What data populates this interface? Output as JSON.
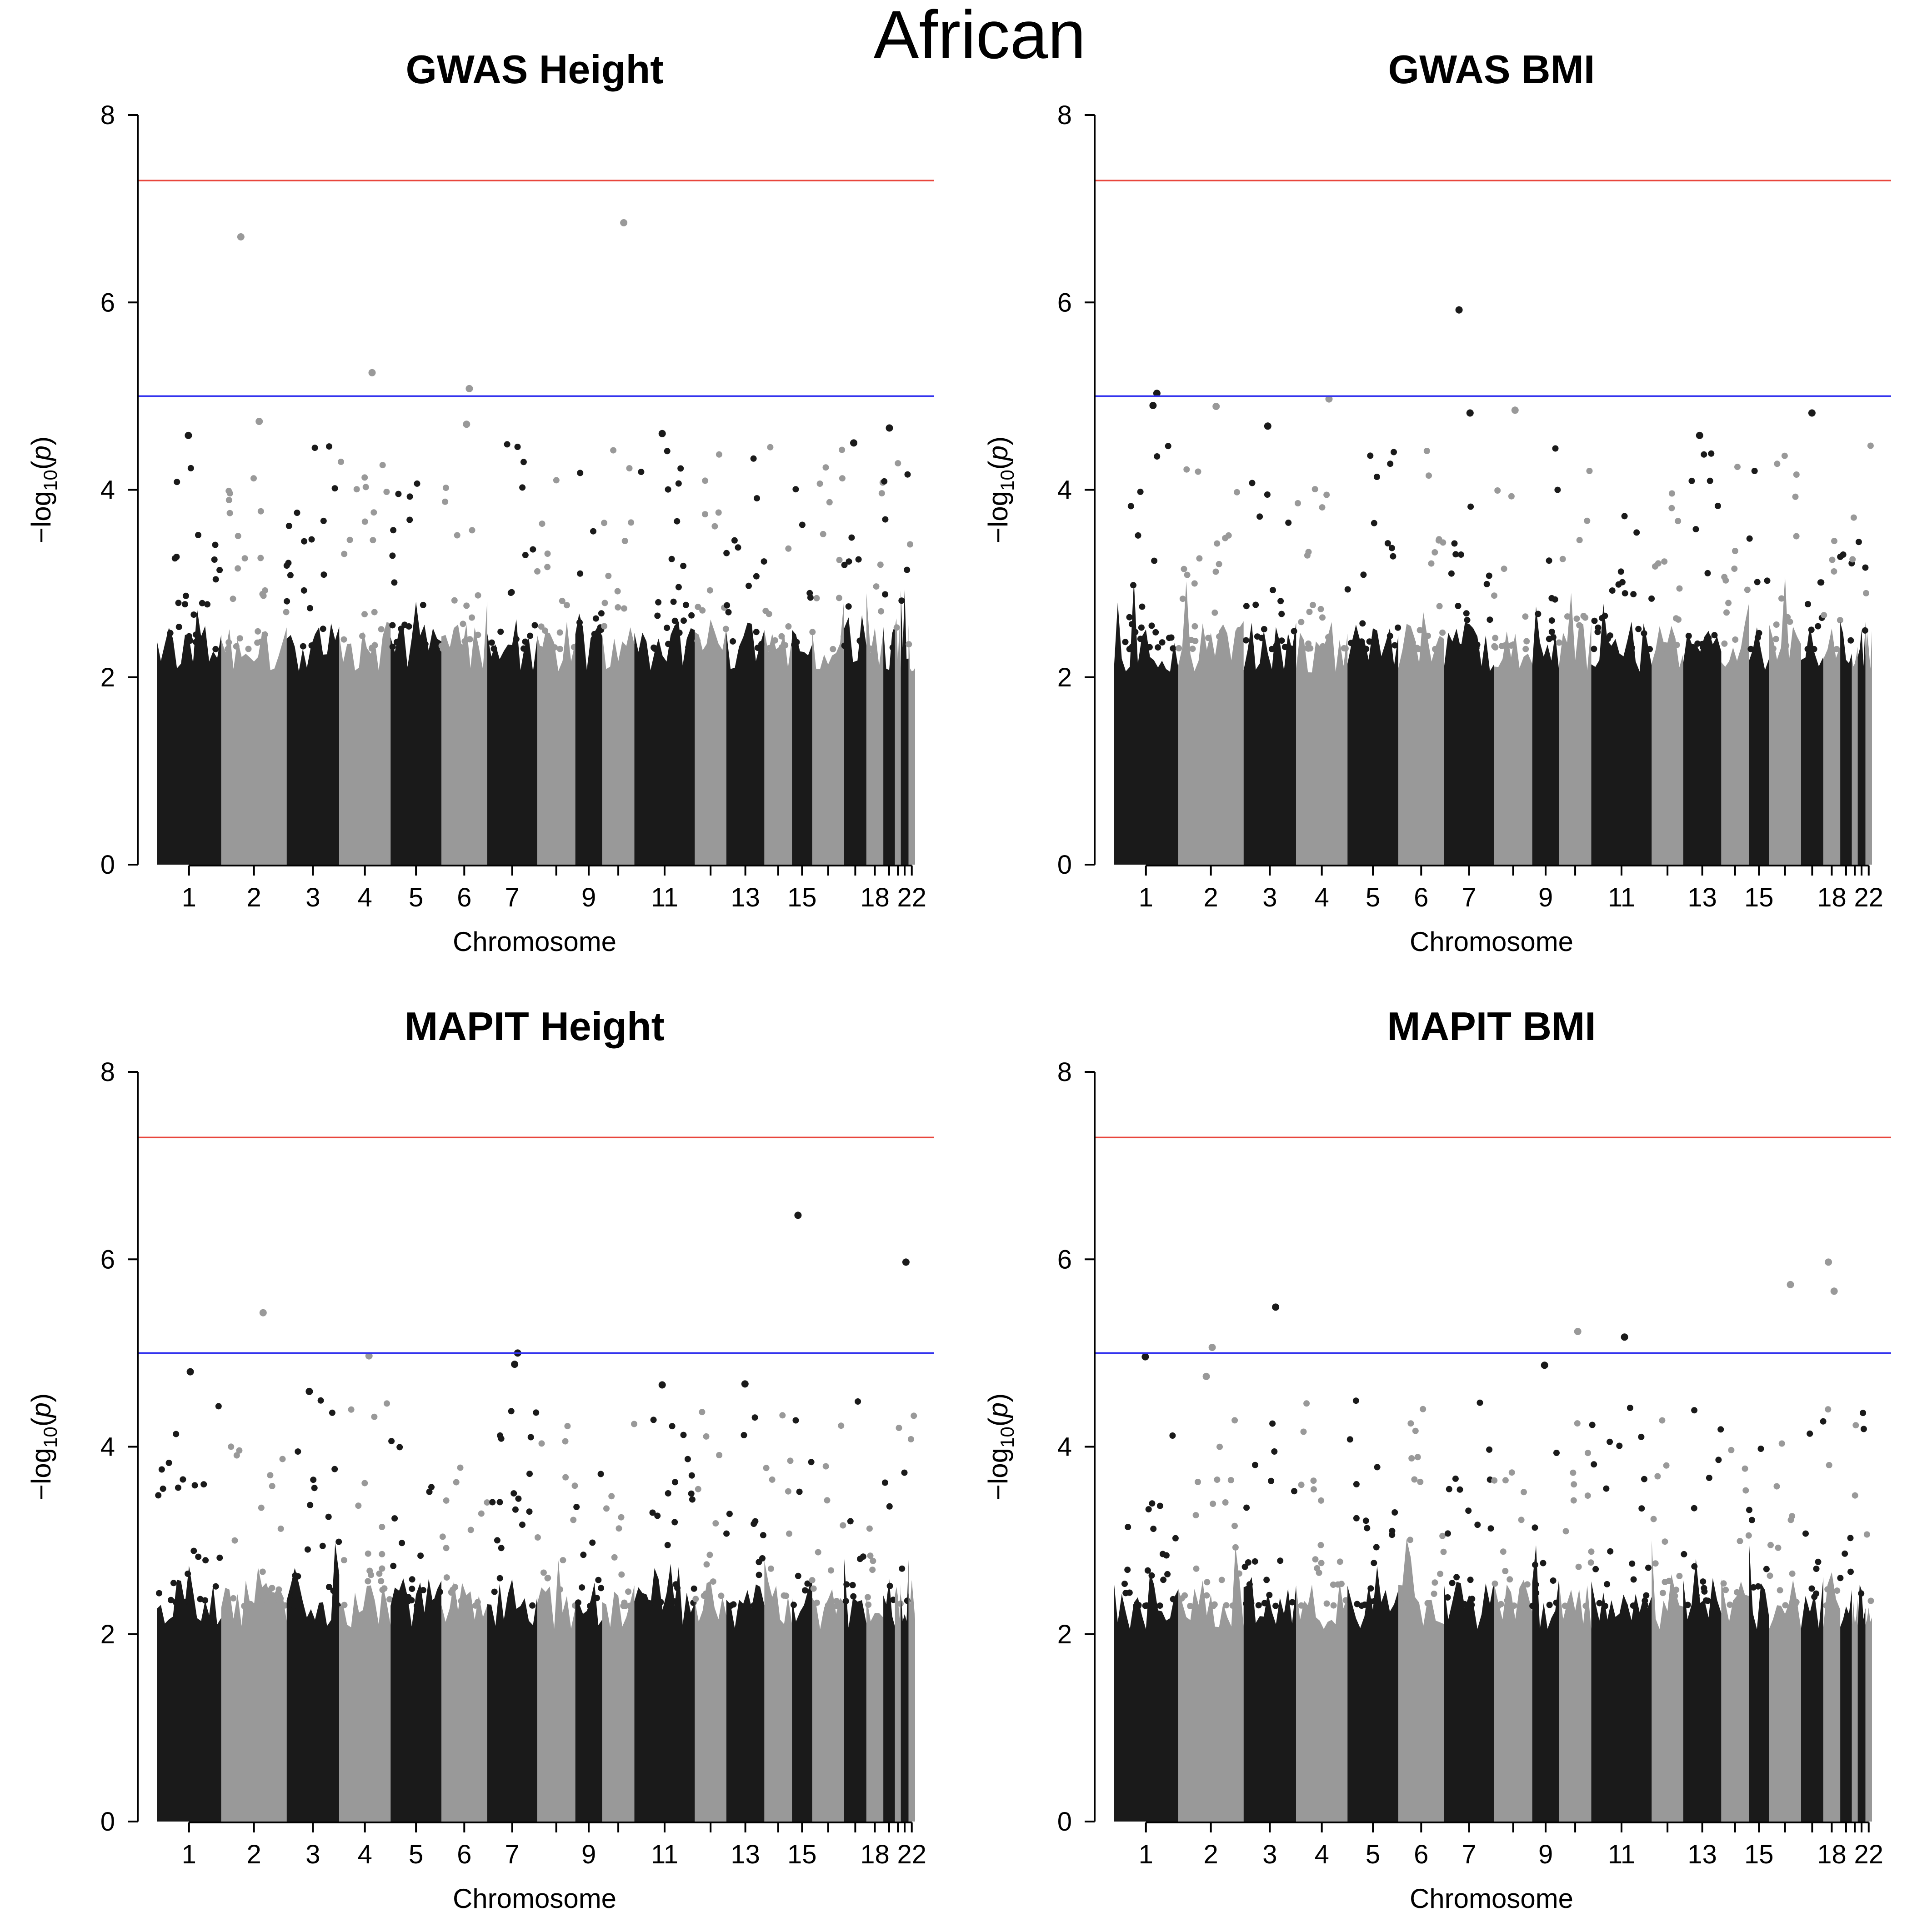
{
  "figure_title": "African",
  "colors": {
    "dark": "#1a1a1a",
    "light": "#999999",
    "red_threshold": "#e8463c",
    "blue_threshold": "#3333ee"
  },
  "chart_data": [
    {
      "type": "scatter",
      "subtype": "manhattan",
      "title": "GWAS Height",
      "xlabel": "Chromosome",
      "ylabel_base": "−log",
      "ylabel_sub": "10",
      "ylabel_arg": "p",
      "ylim": [
        0,
        8
      ],
      "yticks": [
        0,
        2,
        4,
        6,
        8
      ],
      "xtick_labels": [
        "1",
        "2",
        "3",
        "4",
        "5",
        "6",
        "7",
        "9",
        "11",
        "13",
        "15",
        "18",
        "22"
      ],
      "thresholds": [
        7.3,
        5.0
      ],
      "top_hits": [
        {
          "chromosome": 2,
          "neglog10p": 6.7
        },
        {
          "chromosome": 10,
          "neglog10p": 6.85
        },
        {
          "chromosome": 4,
          "neglog10p": 5.25
        },
        {
          "chromosome": 6,
          "neglog10p": 5.08
        },
        {
          "chromosome": 2,
          "neglog10p": 4.73
        },
        {
          "chromosome": 6,
          "neglog10p": 4.7
        },
        {
          "chromosome": 19,
          "neglog10p": 4.66
        },
        {
          "chromosome": 1,
          "neglog10p": 4.58
        },
        {
          "chromosome": 11,
          "neglog10p": 4.6
        },
        {
          "chromosome": 17,
          "neglog10p": 4.5
        }
      ]
    },
    {
      "type": "scatter",
      "subtype": "manhattan",
      "title": "GWAS BMI",
      "xlabel": "Chromosome",
      "ylabel_base": "−log",
      "ylabel_sub": "10",
      "ylabel_arg": "p",
      "ylim": [
        0,
        8
      ],
      "yticks": [
        0,
        2,
        4,
        6,
        8
      ],
      "xtick_labels": [
        "1",
        "2",
        "3",
        "4",
        "5",
        "6",
        "7",
        "9",
        "11",
        "13",
        "15",
        "18",
        "22"
      ],
      "thresholds": [
        7.3,
        5.0
      ],
      "top_hits": [
        {
          "chromosome": 7,
          "neglog10p": 5.92
        },
        {
          "chromosome": 1,
          "neglog10p": 5.03
        },
        {
          "chromosome": 4,
          "neglog10p": 4.97
        },
        {
          "chromosome": 1,
          "neglog10p": 4.9
        },
        {
          "chromosome": 2,
          "neglog10p": 4.89
        },
        {
          "chromosome": 8,
          "neglog10p": 4.85
        },
        {
          "chromosome": 7,
          "neglog10p": 4.82
        },
        {
          "chromosome": 17,
          "neglog10p": 4.82
        },
        {
          "chromosome": 3,
          "neglog10p": 4.68
        },
        {
          "chromosome": 13,
          "neglog10p": 4.58
        }
      ]
    },
    {
      "type": "scatter",
      "subtype": "manhattan",
      "title": "MAPIT Height",
      "xlabel": "Chromosome",
      "ylabel_base": "−log",
      "ylabel_sub": "10",
      "ylabel_arg": "p",
      "ylim": [
        0,
        8
      ],
      "yticks": [
        0,
        2,
        4,
        6,
        8
      ],
      "xtick_labels": [
        "1",
        "2",
        "3",
        "4",
        "5",
        "6",
        "7",
        "9",
        "11",
        "13",
        "15",
        "18",
        "22"
      ],
      "thresholds": [
        7.3,
        5.0
      ],
      "top_hits": [
        {
          "chromosome": 15,
          "neglog10p": 6.47
        },
        {
          "chromosome": 21,
          "neglog10p": 5.97
        },
        {
          "chromosome": 2,
          "neglog10p": 5.43
        },
        {
          "chromosome": 7,
          "neglog10p": 5.0
        },
        {
          "chromosome": 4,
          "neglog10p": 4.97
        },
        {
          "chromosome": 7,
          "neglog10p": 4.88
        },
        {
          "chromosome": 1,
          "neglog10p": 4.8
        },
        {
          "chromosome": 13,
          "neglog10p": 4.67
        },
        {
          "chromosome": 11,
          "neglog10p": 4.66
        },
        {
          "chromosome": 3,
          "neglog10p": 4.59
        }
      ]
    },
    {
      "type": "scatter",
      "subtype": "manhattan",
      "title": "MAPIT BMI",
      "xlabel": "Chromosome",
      "ylabel_base": "−log",
      "ylabel_sub": "10",
      "ylabel_arg": "p",
      "ylim": [
        0,
        8
      ],
      "yticks": [
        0,
        2,
        4,
        6,
        8
      ],
      "xtick_labels": [
        "1",
        "2",
        "3",
        "4",
        "5",
        "6",
        "7",
        "9",
        "11",
        "13",
        "15",
        "18",
        "22"
      ],
      "thresholds": [
        7.3,
        5.0
      ],
      "top_hits": [
        {
          "chromosome": 18,
          "neglog10p": 5.97
        },
        {
          "chromosome": 16,
          "neglog10p": 5.73
        },
        {
          "chromosome": 18,
          "neglog10p": 5.66
        },
        {
          "chromosome": 3,
          "neglog10p": 5.49
        },
        {
          "chromosome": 10,
          "neglog10p": 5.23
        },
        {
          "chromosome": 11,
          "neglog10p": 5.17
        },
        {
          "chromosome": 2,
          "neglog10p": 5.06
        },
        {
          "chromosome": 1,
          "neglog10p": 4.96
        },
        {
          "chromosome": 9,
          "neglog10p": 4.87
        },
        {
          "chromosome": 2,
          "neglog10p": 4.75
        }
      ]
    }
  ]
}
